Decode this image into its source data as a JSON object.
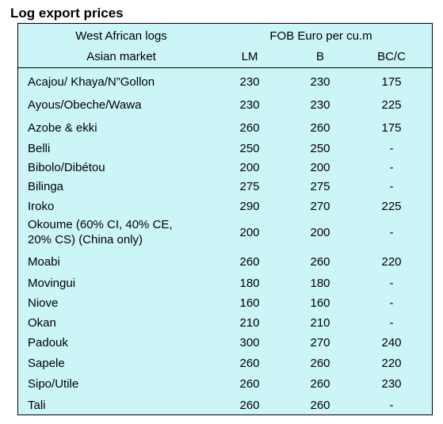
{
  "title": "Log export prices",
  "header": {
    "group_label": "West African logs",
    "market_label": "Asian market",
    "price_label": "FOB Euro per cu.m",
    "columns": [
      "LM",
      "B",
      "BC/C"
    ]
  },
  "rows": [
    {
      "name": "Acajou/ Khaya/N”Gollon",
      "lm": "230",
      "b": "230",
      "bcc": "175"
    },
    {
      "name": "Ayous/Obeche/Wawa",
      "lm": "230",
      "b": "230",
      "bcc": "225"
    },
    {
      "name": "Azobe & ekki",
      "lm": "260",
      "b": "260",
      "bcc": "175"
    },
    {
      "name": "Belli",
      "lm": "250",
      "b": "250",
      "bcc": "-"
    },
    {
      "name": "Bibolo/Dibétou",
      "lm": "200",
      "b": "200",
      "bcc": "-"
    },
    {
      "name": "Bilinga",
      "lm": "275",
      "b": "275",
      "bcc": "-"
    },
    {
      "name": "Iroko",
      "lm": "290",
      "b": "270",
      "bcc": "225"
    },
    {
      "name": "Okoume (60% CI, 40% CE,\n20% CS) (China only)",
      "lm": "200",
      "b": "200",
      "bcc": "-"
    },
    {
      "name": "Moabi",
      "lm": "260",
      "b": "260",
      "bcc": "220"
    },
    {
      "name": "Movingui",
      "lm": "180",
      "b": "180",
      "bcc": "-"
    },
    {
      "name": "Niove",
      "lm": "160",
      "b": "160",
      "bcc": "-"
    },
    {
      "name": "Okan",
      "lm": "210",
      "b": "210",
      "bcc": "-"
    },
    {
      "name": "Padouk",
      "lm": "300",
      "b": "270",
      "bcc": "240"
    },
    {
      "name": "Sapele",
      "lm": "260",
      "b": "260",
      "bcc": "220"
    },
    {
      "name": "Sipo/Utile",
      "lm": "260",
      "b": "260",
      "bcc": "230"
    },
    {
      "name": "Tali",
      "lm": "260",
      "b": "260",
      "bcc": "-"
    }
  ],
  "colors": {
    "table_background": "#ccf5f8",
    "border": "#000000",
    "text": "#000000"
  }
}
